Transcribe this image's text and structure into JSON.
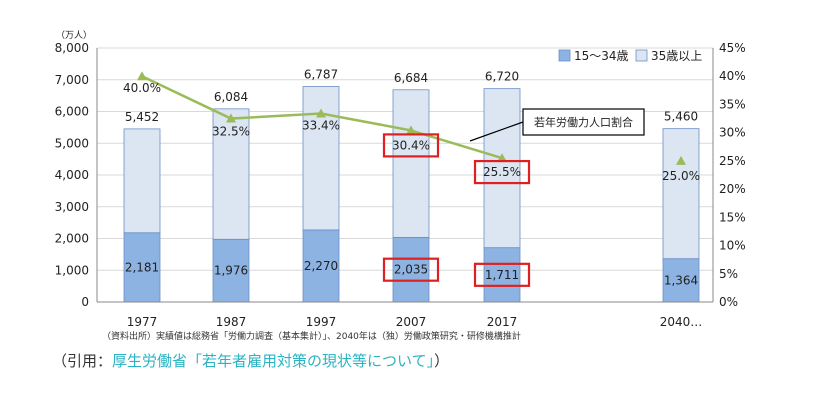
{
  "chart_data": {
    "type": "bar",
    "stacked": true,
    "categories": [
      "1977",
      "1987",
      "1997",
      "2007",
      "2017",
      "2040…"
    ],
    "y_unit": "（万人）",
    "ylim": [
      0,
      8000
    ],
    "y_ticks": [
      "0",
      "1,000",
      "2,000",
      "3,000",
      "4,000",
      "5,000",
      "6,000",
      "7,000",
      "8,000"
    ],
    "y2lim": [
      0,
      45
    ],
    "y2_ticks": [
      "0%",
      "5%",
      "10%",
      "15%",
      "20%",
      "25%",
      "30%",
      "35%",
      "40%",
      "45%"
    ],
    "grid": true,
    "legend_position": "top-right",
    "series": [
      {
        "name": "15～34歳",
        "values": [
          2181,
          1976,
          2270,
          2035,
          1711,
          1364
        ],
        "labels": [
          "2,181",
          "1,976",
          "2,270",
          "2,035",
          "1,711",
          "1,364"
        ],
        "color": "#8db3e2"
      },
      {
        "name": "35歳以上",
        "values": [
          3271,
          4108,
          4517,
          4649,
          5009,
          4096
        ],
        "color": "#dce6f2"
      }
    ],
    "totals": [
      5452,
      6084,
      6787,
      6684,
      6720,
      5460
    ],
    "total_labels": [
      "5,452",
      "6,084",
      "6,787",
      "6,684",
      "6,720",
      "5,460"
    ],
    "line": {
      "values": [
        40.0,
        32.5,
        33.4,
        30.4,
        25.5,
        25.0
      ],
      "labels": [
        "40.0%",
        "32.5%",
        "33.4%",
        "30.4%",
        "25.5%",
        "25.0%"
      ],
      "color": "#9bbb59",
      "connected_points": 5
    },
    "annotation": "若年労働力人口割合",
    "highlighted": [
      {
        "category": "2007",
        "targets": [
          "line",
          "young"
        ]
      },
      {
        "category": "2017",
        "targets": [
          "line",
          "young"
        ]
      }
    ]
  },
  "source_note": "（資料出所）実績値は総務省「労働力調査（基本集計）」、2040年は（独）労働政策研究・研修機構推計",
  "citation": {
    "prefix": "（引用：",
    "link_text": "厚生労働省「若年者雇用対策の現状等について」",
    "suffix": "）"
  },
  "colors": {
    "highlight": "#e02020",
    "axis": "#888888"
  }
}
